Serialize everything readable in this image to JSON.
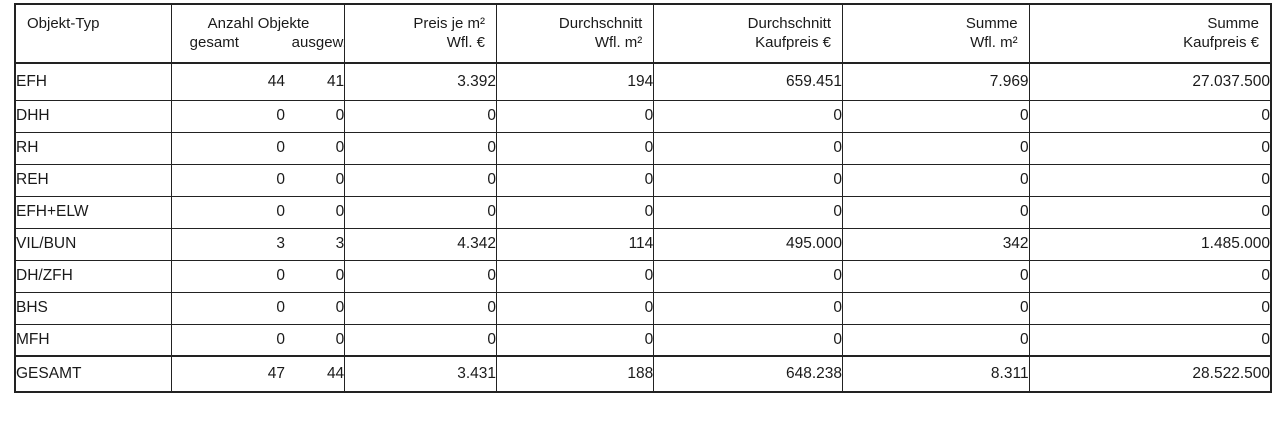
{
  "header": {
    "type": "Objekt-Typ",
    "count_title": "Anzahl Objekte",
    "count_total": "gesamt",
    "count_selected": "ausgew.",
    "price_per_sqm_line1": "Preis je m²",
    "price_per_sqm_line2": "Wfl. €",
    "avg_area_line1": "Durchschnitt",
    "avg_area_line2": "Wfl. m²",
    "avg_price_line1": "Durchschnitt",
    "avg_price_line2": "Kaufpreis €",
    "sum_area_line1": "Summe",
    "sum_area_line2": "Wfl. m²",
    "sum_price_line1": "Summe",
    "sum_price_line2": "Kaufpreis €"
  },
  "rows": [
    {
      "type": "EFH",
      "total": "44",
      "selected": "41",
      "price_sqm": "3.392",
      "avg_area": "194",
      "avg_price": "659.451",
      "sum_area": "7.969",
      "sum_price": "27.037.500"
    },
    {
      "type": "DHH",
      "total": "0",
      "selected": "0",
      "price_sqm": "0",
      "avg_area": "0",
      "avg_price": "0",
      "sum_area": "0",
      "sum_price": "0"
    },
    {
      "type": "RH",
      "total": "0",
      "selected": "0",
      "price_sqm": "0",
      "avg_area": "0",
      "avg_price": "0",
      "sum_area": "0",
      "sum_price": "0"
    },
    {
      "type": "REH",
      "total": "0",
      "selected": "0",
      "price_sqm": "0",
      "avg_area": "0",
      "avg_price": "0",
      "sum_area": "0",
      "sum_price": "0"
    },
    {
      "type": "EFH+ELW",
      "total": "0",
      "selected": "0",
      "price_sqm": "0",
      "avg_area": "0",
      "avg_price": "0",
      "sum_area": "0",
      "sum_price": "0"
    },
    {
      "type": "VIL/BUN",
      "total": "3",
      "selected": "3",
      "price_sqm": "4.342",
      "avg_area": "114",
      "avg_price": "495.000",
      "sum_area": "342",
      "sum_price": "1.485.000"
    },
    {
      "type": "DH/ZFH",
      "total": "0",
      "selected": "0",
      "price_sqm": "0",
      "avg_area": "0",
      "avg_price": "0",
      "sum_area": "0",
      "sum_price": "0"
    },
    {
      "type": "BHS",
      "total": "0",
      "selected": "0",
      "price_sqm": "0",
      "avg_area": "0",
      "avg_price": "0",
      "sum_area": "0",
      "sum_price": "0"
    },
    {
      "type": "MFH",
      "total": "0",
      "selected": "0",
      "price_sqm": "0",
      "avg_area": "0",
      "avg_price": "0",
      "sum_area": "0",
      "sum_price": "0"
    }
  ],
  "total": {
    "type": "GESAMT",
    "total": "47",
    "selected": "44",
    "price_sqm": "3.431",
    "avg_area": "188",
    "avg_price": "648.238",
    "sum_area": "8.311",
    "sum_price": "28.522.500"
  }
}
